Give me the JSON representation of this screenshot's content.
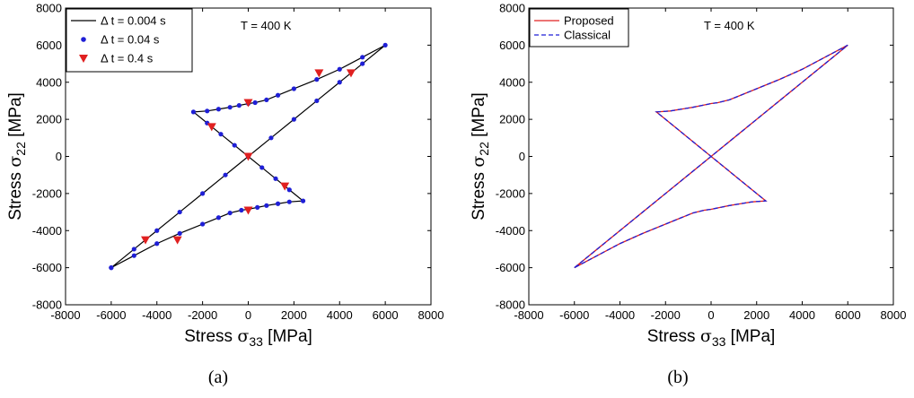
{
  "chart_data": [
    {
      "type": "line",
      "caption": "(a)",
      "annotation": "T = 400 K",
      "xlabel_main": "Stress",
      "xlabel_sym": "σ",
      "xlabel_sub": "33",
      "xlabel_unit": "[MPa]",
      "ylabel_main": "Stress",
      "ylabel_sym": "σ",
      "ylabel_sub": "22",
      "ylabel_unit": "[MPa]",
      "xlim": [
        -8000,
        8000
      ],
      "ylim": [
        -8000,
        8000
      ],
      "xticks": [
        -8000,
        -6000,
        -4000,
        -2000,
        0,
        2000,
        4000,
        6000,
        8000
      ],
      "yticks": [
        -8000,
        -6000,
        -4000,
        -2000,
        0,
        2000,
        4000,
        6000,
        8000
      ],
      "grid": false,
      "legend_position": "top-left",
      "series": [
        {
          "name": "Δ t = 0.004 s",
          "color": "#000000",
          "style": "line"
        },
        {
          "name": "Δ t = 0.04 s",
          "color": "#1f1fd6",
          "style": "dots"
        },
        {
          "name": "Δ t = 0.4 s",
          "color": "#e02020",
          "style": "triangles"
        }
      ],
      "triangle_points": [
        [
          -4500,
          -4500
        ],
        [
          -3100,
          -4500
        ],
        [
          0,
          -2900
        ],
        [
          1600,
          -1600
        ],
        [
          0,
          0
        ],
        [
          -1600,
          1600
        ],
        [
          0,
          2900
        ],
        [
          3100,
          4500
        ],
        [
          4500,
          4500
        ]
      ]
    },
    {
      "type": "line",
      "caption": "(b)",
      "annotation": "T = 400 K",
      "xlabel_main": "Stress",
      "xlabel_sym": "σ",
      "xlabel_sub": "33",
      "xlabel_unit": "[MPa]",
      "ylabel_main": "Stress",
      "ylabel_sym": "σ",
      "ylabel_sub": "22",
      "ylabel_unit": "[MPa]",
      "xlim": [
        -8000,
        8000
      ],
      "ylim": [
        -8000,
        8000
      ],
      "xticks": [
        -8000,
        -6000,
        -4000,
        -2000,
        0,
        2000,
        4000,
        6000,
        8000
      ],
      "yticks": [
        -8000,
        -6000,
        -4000,
        -2000,
        0,
        2000,
        4000,
        6000,
        8000
      ],
      "grid": false,
      "legend_position": "top-left",
      "series": [
        {
          "name": "Proposed",
          "color": "#e02020",
          "style": "solid"
        },
        {
          "name": "Classical",
          "color": "#1f1fd6",
          "style": "dashed"
        }
      ]
    }
  ],
  "loop_path": [
    [
      -6000,
      -6000
    ],
    [
      -5000,
      -5000
    ],
    [
      -4000,
      -4000
    ],
    [
      -3000,
      -3000
    ],
    [
      -2000,
      -2000
    ],
    [
      -1000,
      -1000
    ],
    [
      0,
      0
    ],
    [
      1000,
      1000
    ],
    [
      2000,
      2000
    ],
    [
      3000,
      3000
    ],
    [
      4000,
      4000
    ],
    [
      5000,
      5000
    ],
    [
      6000,
      6000
    ],
    [
      5000,
      5350
    ],
    [
      4000,
      4700
    ],
    [
      3000,
      4150
    ],
    [
      2000,
      3650
    ],
    [
      1300,
      3300
    ],
    [
      800,
      3050
    ],
    [
      300,
      2900
    ],
    [
      0,
      2850
    ],
    [
      -400,
      2750
    ],
    [
      -800,
      2650
    ],
    [
      -1300,
      2550
    ],
    [
      -1800,
      2450
    ],
    [
      -2400,
      2400
    ],
    [
      -1800,
      1800
    ],
    [
      -1200,
      1200
    ],
    [
      -600,
      600
    ],
    [
      0,
      0
    ],
    [
      600,
      -600
    ],
    [
      1200,
      -1200
    ],
    [
      1800,
      -1800
    ],
    [
      2400,
      -2400
    ],
    [
      1800,
      -2450
    ],
    [
      1300,
      -2550
    ],
    [
      800,
      -2650
    ],
    [
      400,
      -2750
    ],
    [
      0,
      -2850
    ],
    [
      -300,
      -2900
    ],
    [
      -800,
      -3050
    ],
    [
      -1300,
      -3300
    ],
    [
      -2000,
      -3650
    ],
    [
      -3000,
      -4150
    ],
    [
      -4000,
      -4700
    ],
    [
      -5000,
      -5350
    ],
    [
      -6000,
      -6000
    ]
  ]
}
